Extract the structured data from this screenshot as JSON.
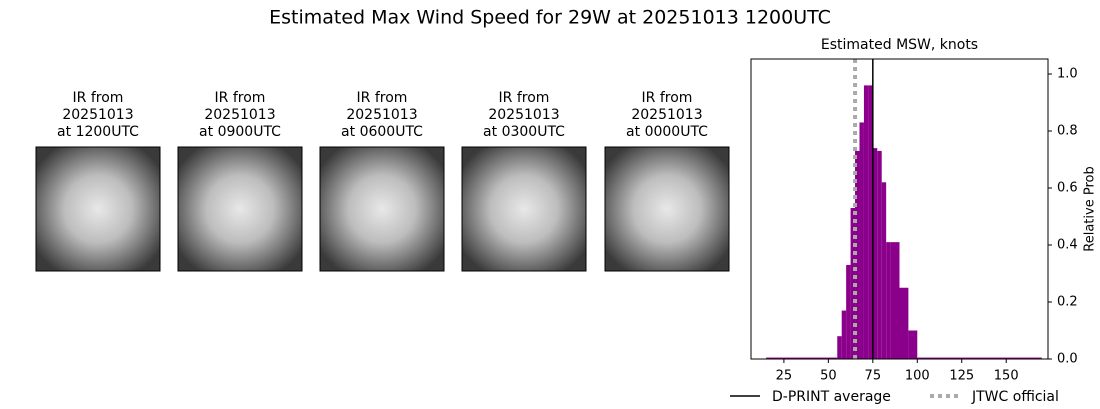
{
  "title": "Estimated Max Wind Speed for 29W at 20251013 1200UTC",
  "panels": [
    {
      "lines": [
        "IR from",
        "20251013",
        "at 1200UTC"
      ]
    },
    {
      "lines": [
        "IR from",
        "20251013",
        "at 0900UTC"
      ]
    },
    {
      "lines": [
        "IR from",
        "20251013",
        "at 0600UTC"
      ]
    },
    {
      "lines": [
        "IR from",
        "20251013",
        "at 0300UTC"
      ]
    },
    {
      "lines": [
        "IR from",
        "20251013",
        "at 0000UTC"
      ]
    }
  ],
  "chart_data": {
    "type": "histogram",
    "title": "Estimated MSW, knots",
    "ylabel": "Relative Prob",
    "bins": [
      15,
      55,
      57.5,
      60,
      62.5,
      65,
      67.5,
      70,
      72.5,
      75,
      77.5,
      80,
      82.5,
      85,
      90,
      95,
      100,
      170
    ],
    "values": [
      0.005,
      0.08,
      0.17,
      0.33,
      0.53,
      0.73,
      0.83,
      0.96,
      0.96,
      0.74,
      0.73,
      0.62,
      0.41,
      0.41,
      0.25,
      0.1,
      0.005
    ],
    "color": "#8b008b",
    "xlim": [
      6.5,
      173.5
    ],
    "ylim": [
      0,
      1.0526
    ],
    "xticks": [
      25,
      50,
      75,
      100,
      125,
      150
    ],
    "yticks": [
      {
        "value": 0,
        "label": "0.0"
      },
      {
        "value": 0.2,
        "label": "0.2"
      },
      {
        "value": 0.4,
        "label": "0.4"
      },
      {
        "value": 0.6,
        "label": "0.6"
      },
      {
        "value": 0.8,
        "label": "0.8"
      },
      {
        "value": 1,
        "label": "1.0"
      }
    ],
    "lines": [
      {
        "name": "D-PRINT average",
        "value": 75,
        "color": "#000000",
        "style": "solid"
      },
      {
        "name": "JTWC official",
        "value": 65,
        "color": "#aaaaaa",
        "style": "dotted"
      }
    ]
  }
}
